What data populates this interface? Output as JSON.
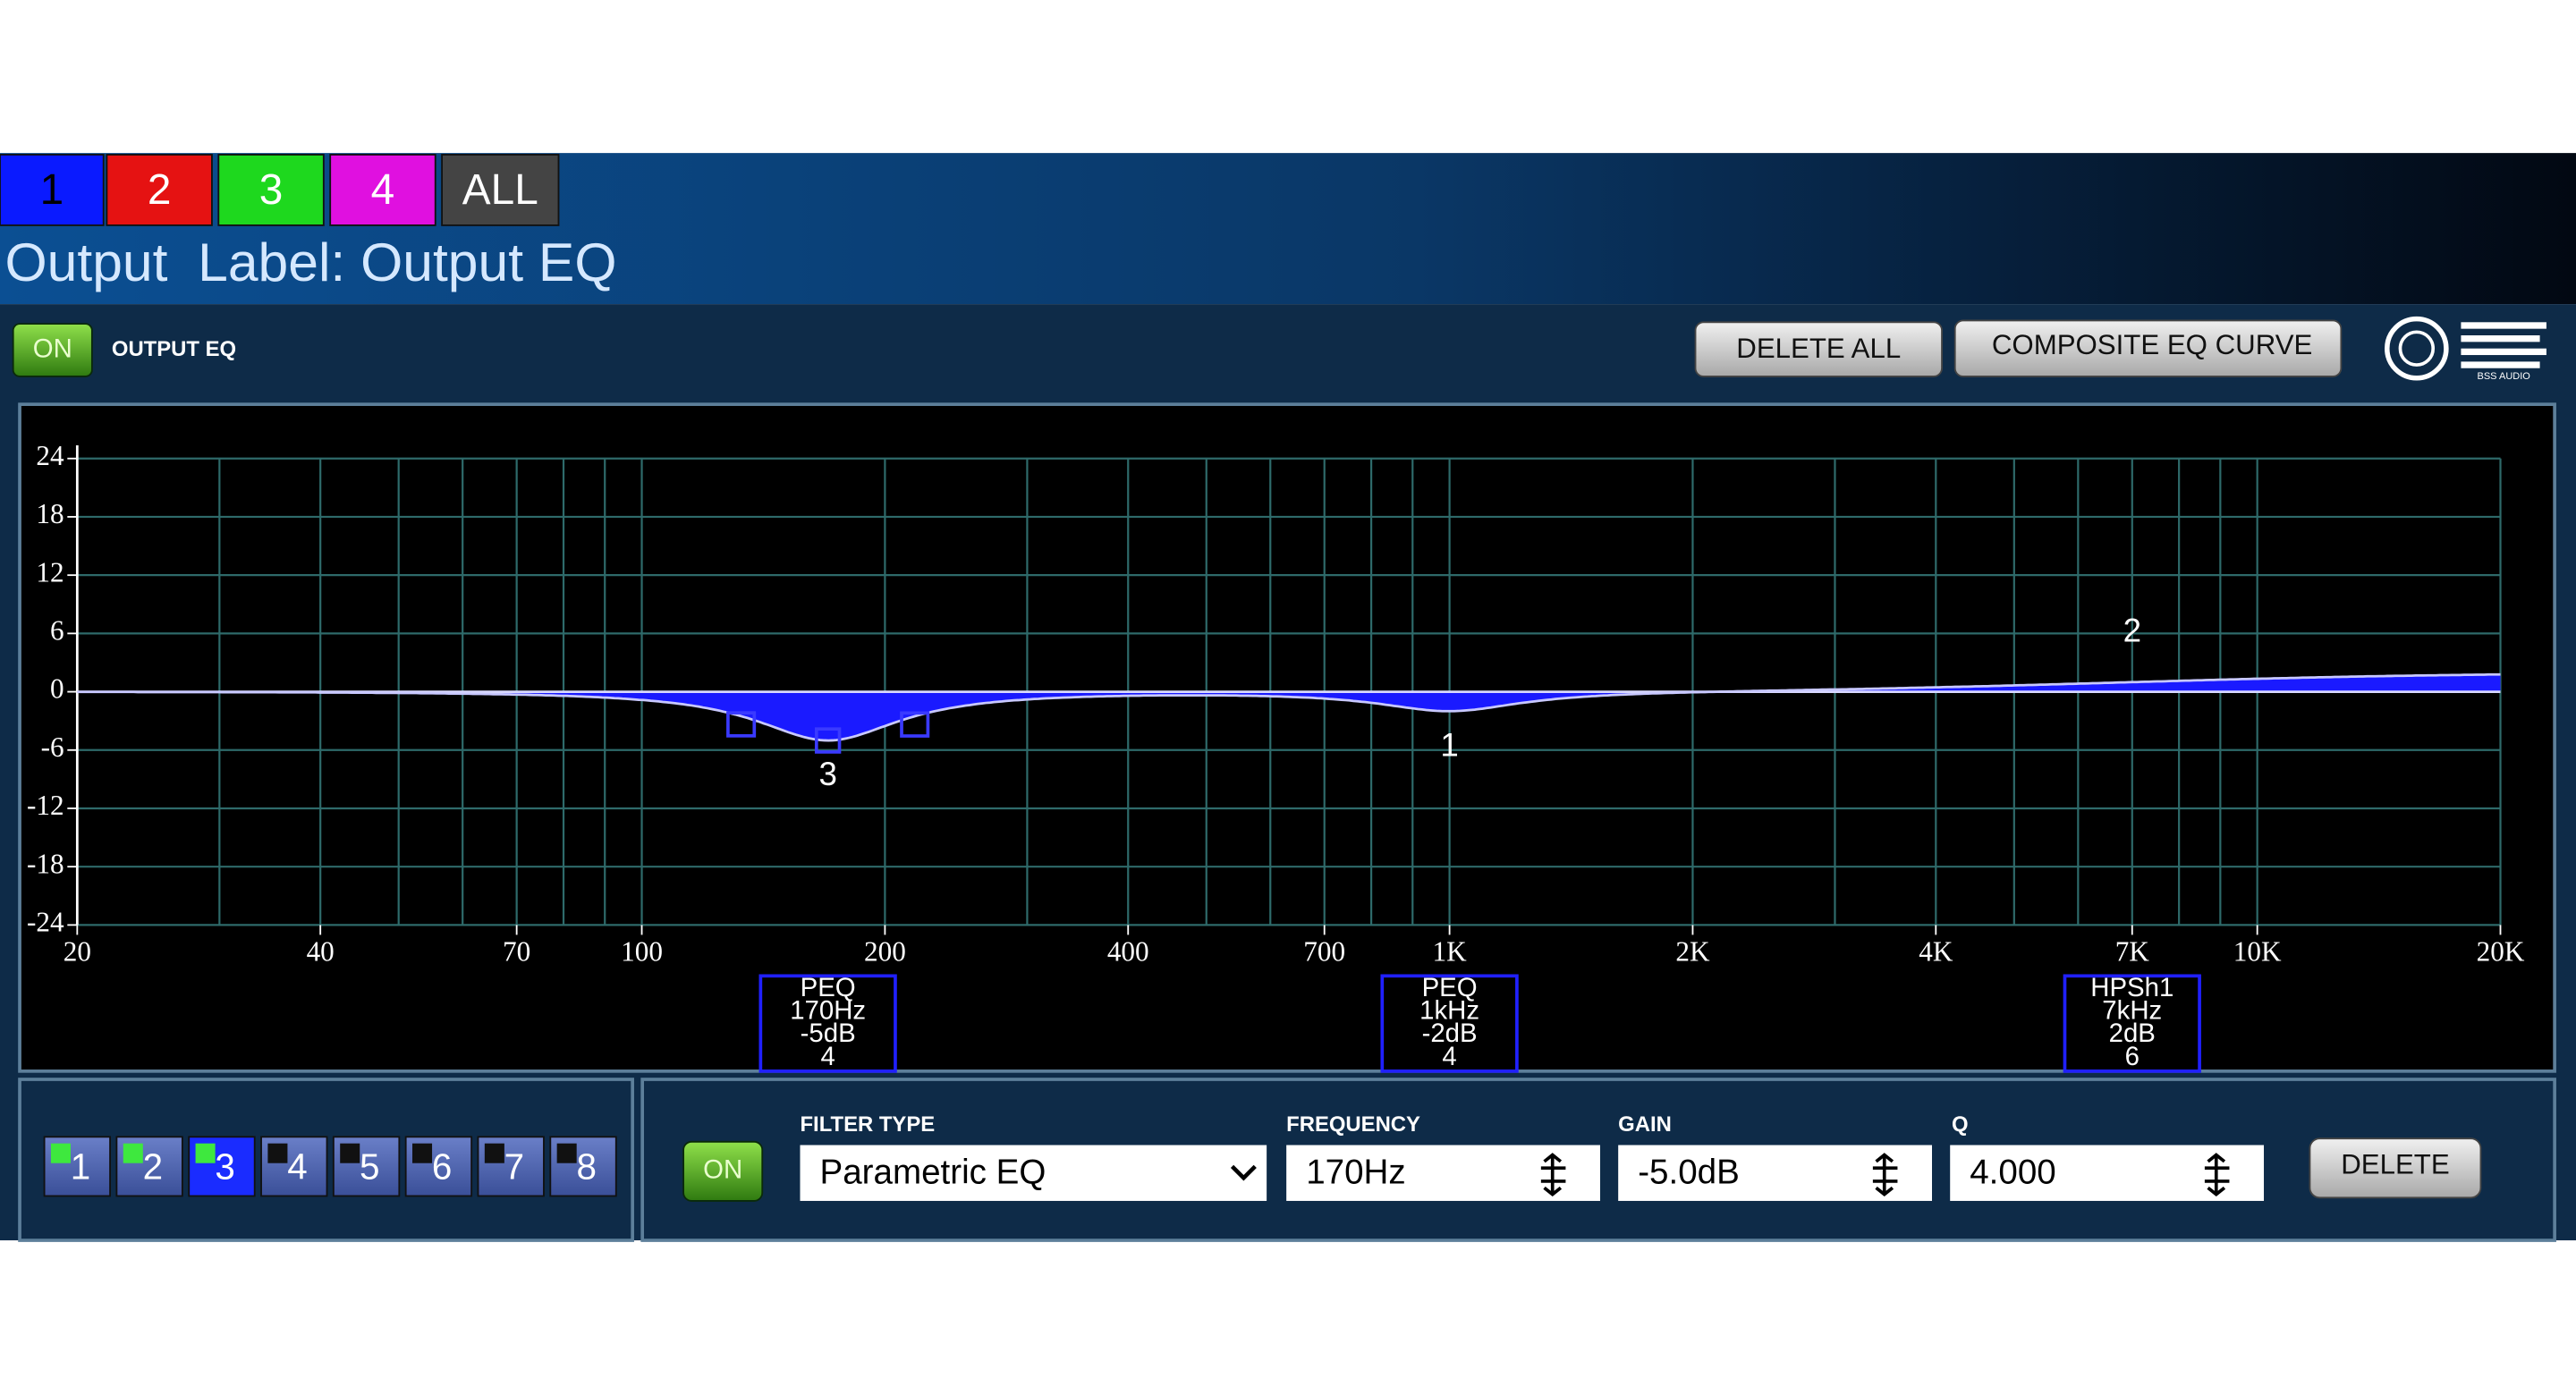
{
  "channel_tabs": [
    "1",
    "2",
    "3",
    "4",
    "ALL"
  ],
  "output_label": "Output  Label: Output EQ",
  "eq_block": {
    "on_button": "ON",
    "title": "OUTPUT EQ",
    "delete_all": "DELETE ALL",
    "composite": "COMPOSITE EQ CURVE",
    "logo_text": "BSS AUDIO"
  },
  "graph": {
    "ylim": [
      -24,
      24
    ],
    "yticks": [
      24,
      18,
      12,
      6,
      0,
      -6,
      -12,
      -18,
      -24
    ],
    "xlim": [
      20,
      20000
    ],
    "log_x": true,
    "xticks": [
      20,
      40,
      70,
      100,
      200,
      400,
      700,
      {
        "value": 1000,
        "label": "1K"
      },
      {
        "value": 2000,
        "label": "2K"
      },
      {
        "value": 4000,
        "label": "4K"
      },
      {
        "value": 7000,
        "label": "7K"
      },
      {
        "value": 10000,
        "label": "10K"
      },
      {
        "value": 20000,
        "label": "20K"
      }
    ],
    "curve_color": "#1a1aff",
    "filters": [
      {
        "band": "3",
        "type": "PEQ",
        "frequency": {
          "value": 170,
          "label": "170Hz"
        },
        "gain": {
          "value": -5,
          "label": "-5dB"
        },
        "q": 4,
        "selected": true
      },
      {
        "band": "1",
        "type": "PEQ",
        "frequency": {
          "value": 1000,
          "label": "1kHz"
        },
        "gain": {
          "value": -2,
          "label": "-2dB"
        },
        "q": 4,
        "selected": false
      },
      {
        "band": "2",
        "type": "HPSh1",
        "frequency": {
          "value": 7000,
          "label": "7kHz"
        },
        "gain": {
          "value": 2,
          "label": "2dB"
        },
        "q": 6,
        "selected": false
      }
    ]
  },
  "band_buttons": {
    "labels": [
      "1",
      "2",
      "3",
      "4",
      "5",
      "6",
      "7",
      "8"
    ],
    "active": [
      true,
      true,
      true,
      false,
      false,
      false,
      false,
      false
    ],
    "selected": "3"
  },
  "filter_editor": {
    "on_button": "ON",
    "filter_type_label": "FILTER TYPE",
    "filter_type": "Parametric EQ",
    "frequency_label": "FREQUENCY",
    "frequency": "170Hz",
    "gain_label": "GAIN",
    "gain": "-5.0dB",
    "q_label": "Q",
    "q": "4.000",
    "delete": "DELETE"
  }
}
